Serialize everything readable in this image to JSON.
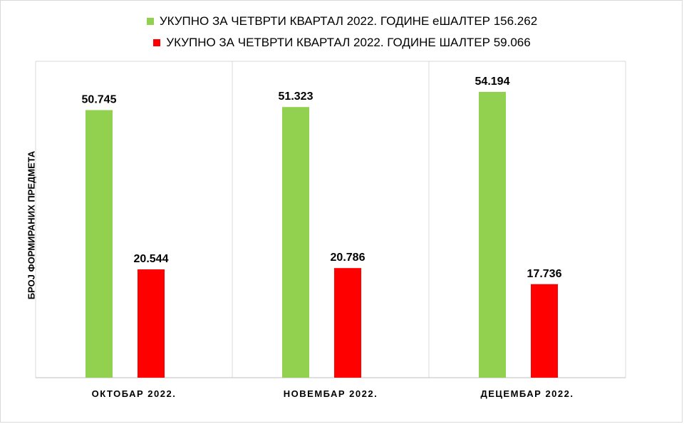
{
  "chart_data": {
    "type": "bar",
    "categories": [
      "ОКТОБАР 2022.",
      "НОВЕМБАР 2022.",
      "ДЕЦЕМБАР 2022."
    ],
    "series": [
      {
        "name": "УКУПНО ЗА ЧЕТВРТИ КВАРТАЛ 2022. ГОДИНЕ еШАЛТЕР 156.262",
        "values": [
          50745,
          51323,
          54194
        ],
        "labels": [
          "50.745",
          "51.323",
          "54.194"
        ],
        "color": "#92d050"
      },
      {
        "name": "УКУПНО ЗА ЧЕТВРТИ КВАРТАЛ 2022. ГОДИНЕ ШАЛТЕР 59.066",
        "values": [
          20544,
          20786,
          17736
        ],
        "labels": [
          "20.544",
          "20.786",
          "17.736"
        ],
        "color": "#ff0000"
      }
    ],
    "ylabel": "БРОЈ ФОРМИРАНИХ ПРЕДМЕТА",
    "ylim": [
      0,
      60000
    ],
    "grid": false,
    "legend_position": "top"
  }
}
